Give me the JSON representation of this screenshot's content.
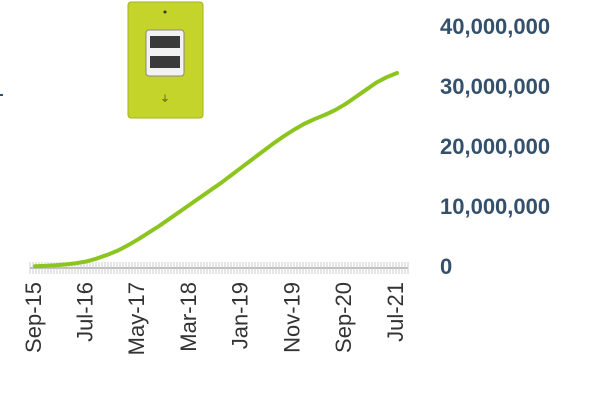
{
  "chart_data": {
    "type": "line",
    "categories": [
      "Sep-15",
      null,
      null,
      null,
      null,
      "Jul-16",
      null,
      null,
      null,
      null,
      "May-17",
      null,
      null,
      null,
      null,
      "Mar-18",
      null,
      null,
      null,
      null,
      "Jan-19",
      null,
      null,
      null,
      null,
      "Nov-19",
      null,
      null,
      null,
      null,
      "Sep-20",
      null,
      null,
      null,
      null,
      "Jul-21"
    ],
    "series": [
      {
        "color": "#8cc420",
        "values": [
          300000,
          350000,
          450000,
          600000,
          800000,
          1100000,
          1600000,
          2200000,
          2900000,
          3800000,
          4800000,
          5900000,
          7000000,
          8200000,
          9400000,
          10600000,
          11800000,
          13000000,
          14200000,
          15500000,
          16800000,
          18100000,
          19400000,
          20700000,
          21900000,
          23000000,
          24000000,
          24800000,
          25500000,
          26300000,
          27300000,
          28500000,
          29700000,
          30900000,
          31800000,
          32500000
        ]
      }
    ],
    "ylim": [
      0,
      40000000
    ],
    "yticks": [
      0,
      {
        "value": 10000000,
        "label": "10,000,000"
      },
      {
        "value": 20000000,
        "label": "20,000,000"
      },
      {
        "value": 30000000,
        "label": "30,000,000"
      },
      {
        "value": 40000000,
        "label": "40,000,000"
      }
    ]
  }
}
